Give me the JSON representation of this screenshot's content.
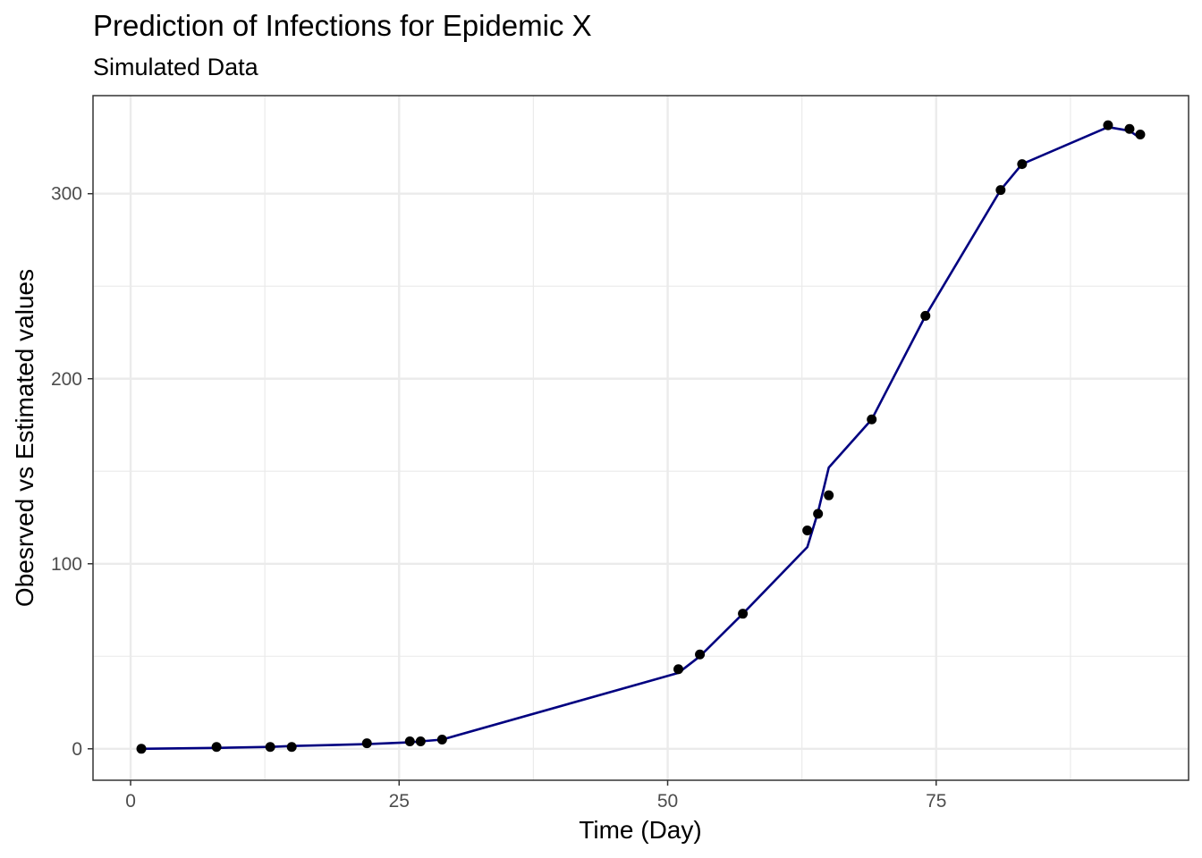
{
  "chart_data": {
    "type": "line",
    "title": "Prediction of Infections for Epidemic X",
    "subtitle": "Simulated Data",
    "xlabel": "Time (Day)",
    "ylabel": "Obesrved vs Estimated values",
    "xlim": [
      -3.5,
      98.5
    ],
    "ylim": [
      -17,
      353
    ],
    "x_ticks": [
      0,
      25,
      50,
      75
    ],
    "x_minor_ticks": [
      12.5,
      37.5,
      62.5,
      87.5
    ],
    "y_ticks": [
      0,
      100,
      200,
      300
    ],
    "y_minor_ticks": [
      50,
      150,
      250
    ],
    "grid": true,
    "legend": "none",
    "colors": {
      "observed": "#000000",
      "estimated": "#000080",
      "grid": "#ebebeb",
      "panel_border": "#333333"
    },
    "series": [
      {
        "kind": "points",
        "x": [
          1,
          8,
          13,
          15,
          22,
          26,
          27,
          29,
          51,
          53,
          57,
          63,
          64,
          65,
          69,
          74,
          81,
          83,
          91,
          93,
          94
        ],
        "values": [
          0,
          1,
          1,
          1,
          3,
          4,
          4,
          5,
          43,
          51,
          73,
          118,
          127,
          137,
          178,
          234,
          302,
          316,
          337,
          335,
          332
        ]
      },
      {
        "kind": "line",
        "x": [
          1,
          8,
          13,
          15,
          22,
          26,
          27,
          29,
          51,
          53,
          57,
          63,
          64,
          65,
          69,
          74,
          81,
          83,
          91,
          93,
          94
        ],
        "values": [
          0,
          0.5,
          1,
          1.5,
          2.5,
          3.5,
          4,
          5,
          41,
          50,
          73,
          109,
          128,
          152,
          178,
          234,
          302,
          316,
          336,
          334,
          330
        ]
      }
    ]
  }
}
